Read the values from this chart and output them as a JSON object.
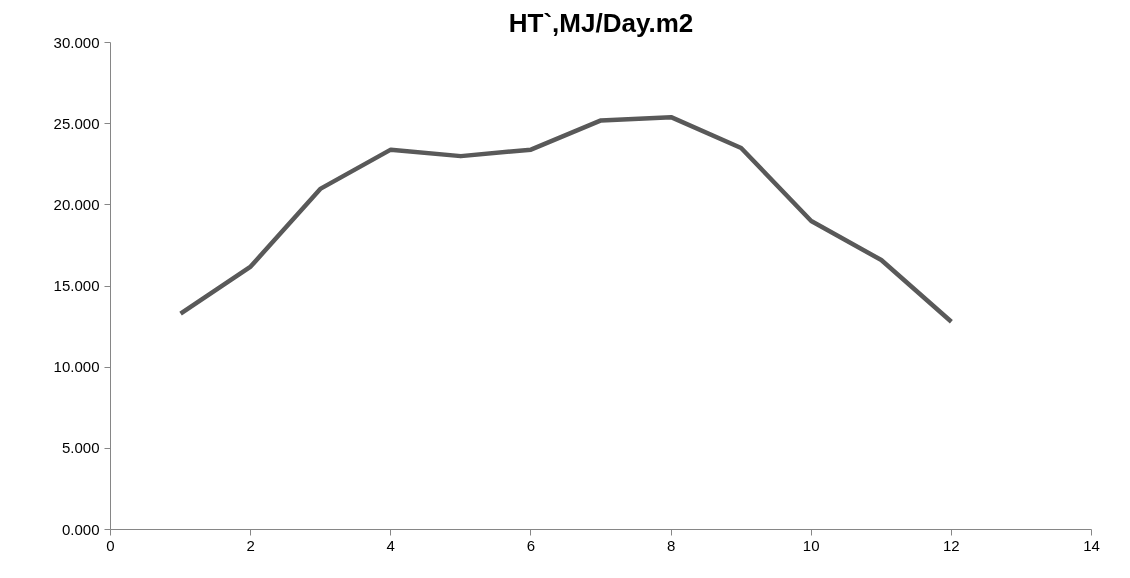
{
  "chart_data": {
    "type": "line",
    "title": "HT`,MJ/Day.m2",
    "x": [
      1,
      2,
      3,
      4,
      5,
      6,
      7,
      8,
      9,
      10,
      11,
      12
    ],
    "series": [
      {
        "color": "#595959",
        "values": [
          13.3,
          16.2,
          21.0,
          23.4,
          23.0,
          23.4,
          25.2,
          25.4,
          23.5,
          19.0,
          16.6,
          12.8
        ]
      }
    ],
    "xlim": [
      0,
      14
    ],
    "xticks": [
      0,
      2,
      4,
      6,
      8,
      10,
      12,
      14
    ],
    "ylim": [
      0,
      30
    ],
    "yticks": [
      {
        "value": 0,
        "label": "0.000"
      },
      {
        "value": 5,
        "label": "5.000"
      },
      {
        "value": 10,
        "label": "10.000"
      },
      {
        "value": 15,
        "label": "15.000"
      },
      {
        "value": 20,
        "label": "20.000"
      },
      {
        "value": 25,
        "label": "25.000"
      },
      {
        "value": 30,
        "label": "30.000"
      }
    ],
    "grid": false,
    "marker": "none",
    "line_style": "solid"
  }
}
